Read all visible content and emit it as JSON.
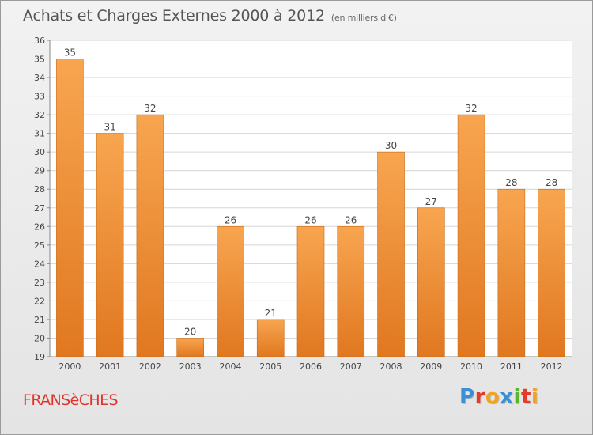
{
  "header": {
    "title": "Achats et Charges Externes 2000 à 2012",
    "unit": "(en milliers d'€)"
  },
  "footer": {
    "commune": "FRANSèCHES",
    "logo_letters": [
      "P",
      "r",
      "o",
      "x",
      "i",
      "t",
      "i"
    ],
    "logo_colors": [
      "#3a8fd6",
      "#e23c2a",
      "#f2a21e",
      "#3a8fd6",
      "#59b52f",
      "#e23c2a",
      "#f2a21e"
    ]
  },
  "colors": {
    "bar_light": "#f8a550",
    "bar_dark": "#e07820",
    "bar_edge": "#c86a14",
    "grid": "#d6d6d6",
    "axis": "#888888",
    "text": "#444444"
  },
  "chart_data": {
    "type": "bar",
    "title": "Achats et Charges Externes 2000 à 2012",
    "subtitle": "(en milliers d'€)",
    "categories": [
      "2000",
      "2001",
      "2002",
      "2003",
      "2004",
      "2005",
      "2006",
      "2007",
      "2008",
      "2009",
      "2010",
      "2011",
      "2012"
    ],
    "values": [
      35,
      31,
      32,
      20,
      26,
      21,
      26,
      26,
      30,
      27,
      32,
      28,
      28
    ],
    "ylim": [
      19,
      36
    ],
    "yticks": [
      19,
      20,
      21,
      22,
      23,
      24,
      25,
      26,
      27,
      28,
      29,
      30,
      31,
      32,
      33,
      34,
      35,
      36
    ],
    "grid": true,
    "legend": "none"
  }
}
